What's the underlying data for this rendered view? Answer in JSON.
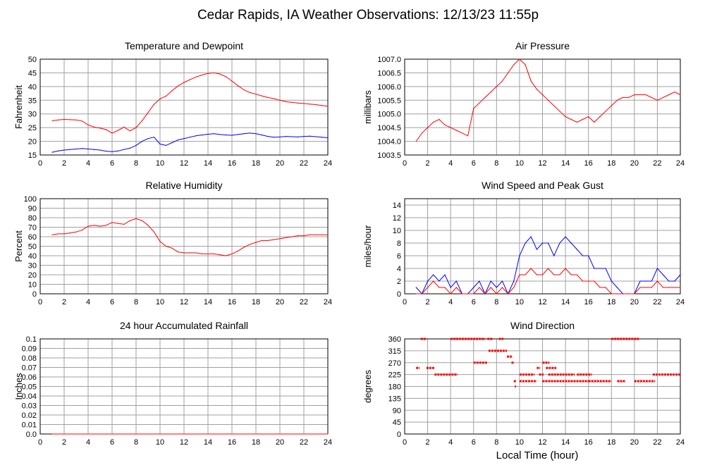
{
  "page": {
    "title": "Cedar Rapids, IA Weather Observations: 12/13/23 11:55p",
    "x_axis_label": "Local Time (hour)"
  },
  "colors": {
    "red": "#ff0000",
    "blue": "#0000ff",
    "grid": "#a0a0a0",
    "frame": "#000000"
  },
  "chart_data": [
    {
      "id": "temp",
      "type": "line",
      "title": "Temperature and Dewpoint",
      "ylabel": "Fahrenheit",
      "xlim": [
        0,
        24
      ],
      "ylim": [
        15,
        50
      ],
      "xticks": [
        2,
        4,
        6,
        8,
        10,
        12,
        14,
        16,
        18,
        20,
        22,
        24
      ],
      "yticks": [
        15,
        20,
        25,
        30,
        35,
        40,
        45,
        50
      ],
      "ytick_labels": [
        "15",
        "20",
        "25",
        "30",
        "35",
        "40",
        "45",
        "50"
      ],
      "grid": true,
      "series": [
        {
          "color": "#ff0000",
          "x": [
            1,
            1.5,
            2,
            2.5,
            3,
            3.5,
            4,
            4.5,
            5,
            5.5,
            6,
            6.5,
            7,
            7.5,
            8,
            8.5,
            9,
            9.5,
            10,
            10.5,
            11,
            11.5,
            12,
            12.5,
            13,
            13.5,
            14,
            14.5,
            15,
            15.5,
            16,
            16.5,
            17,
            17.5,
            18,
            18.5,
            19,
            19.5,
            20,
            20.5,
            21,
            21.5,
            22,
            22.5,
            23,
            23.5,
            24
          ],
          "y": [
            27.5,
            27.8,
            28,
            27.9,
            27.8,
            27.4,
            26,
            25.2,
            24.8,
            24.3,
            23,
            24,
            25.2,
            23.8,
            25,
            27.5,
            30.5,
            33.5,
            35.5,
            36.5,
            38.5,
            40.2,
            41.5,
            42.5,
            43.5,
            44.2,
            44.8,
            45,
            44.6,
            43.6,
            42,
            40.3,
            38.8,
            37.8,
            37.2,
            36.6,
            36,
            35.6,
            35,
            34.5,
            34.2,
            34,
            33.8,
            33.6,
            33.4,
            33.1,
            32.8
          ]
        },
        {
          "color": "#0000ff",
          "x": [
            1,
            1.5,
            2,
            2.5,
            3,
            3.5,
            4,
            4.5,
            5,
            5.5,
            6,
            6.5,
            7,
            7.5,
            8,
            8.5,
            9,
            9.5,
            10,
            10.5,
            11,
            11.5,
            12,
            12.5,
            13,
            13.5,
            14,
            14.5,
            15,
            15.5,
            16,
            16.5,
            17,
            17.5,
            18,
            18.5,
            19,
            19.5,
            20,
            20.5,
            21,
            21.5,
            22,
            22.5,
            23,
            23.5,
            24
          ],
          "y": [
            16,
            16.5,
            16.8,
            17,
            17.2,
            17.4,
            17.2,
            17,
            16.8,
            16.4,
            16.2,
            16.5,
            17,
            17.5,
            18.5,
            20,
            21,
            21.5,
            19,
            18.5,
            19.5,
            20.5,
            21,
            21.5,
            22,
            22.3,
            22.6,
            22.8,
            22.5,
            22.3,
            22.2,
            22.5,
            22.8,
            23,
            22.8,
            22.3,
            21.8,
            21.5,
            21.6,
            21.8,
            21.7,
            21.6,
            21.8,
            21.9,
            21.7,
            21.5,
            21.3
          ]
        }
      ]
    },
    {
      "id": "pressure",
      "type": "line",
      "title": "Air Pressure",
      "ylabel": "millibars",
      "xlim": [
        0,
        24
      ],
      "ylim": [
        1003.5,
        1007.0
      ],
      "xticks": [
        2,
        4,
        6,
        8,
        10,
        12,
        14,
        16,
        18,
        20,
        22,
        24
      ],
      "yticks": [
        1003.5,
        1004,
        1004.5,
        1005,
        1005.5,
        1006,
        1006.5,
        1007
      ],
      "ytick_labels": [
        "1003.5",
        "1004.0",
        "1004.5",
        "1005.0",
        "1005.5",
        "1006.0",
        "1006.5",
        "1007.0"
      ],
      "grid": true,
      "series": [
        {
          "color": "#ff0000",
          "x": [
            1,
            1.5,
            2,
            2.5,
            3,
            3.5,
            4,
            4.5,
            5,
            5.5,
            6,
            6.5,
            7,
            7.5,
            8,
            8.5,
            9,
            9.5,
            10,
            10.5,
            11,
            11.5,
            12,
            12.5,
            13,
            13.5,
            14,
            14.5,
            15,
            15.5,
            16,
            16.5,
            17,
            17.5,
            18,
            18.5,
            19,
            19.5,
            20,
            20.5,
            21,
            21.5,
            22,
            22.5,
            23,
            23.5,
            24
          ],
          "y": [
            1004,
            1004.3,
            1004.5,
            1004.7,
            1004.8,
            1004.6,
            1004.5,
            1004.4,
            1004.3,
            1004.2,
            1005.2,
            1005.4,
            1005.6,
            1005.8,
            1006.0,
            1006.2,
            1006.5,
            1006.8,
            1007.0,
            1006.8,
            1006.2,
            1005.9,
            1005.7,
            1005.5,
            1005.3,
            1005.1,
            1004.9,
            1004.8,
            1004.7,
            1004.8,
            1004.9,
            1004.7,
            1004.9,
            1005.1,
            1005.3,
            1005.5,
            1005.6,
            1005.6,
            1005.7,
            1005.7,
            1005.7,
            1005.6,
            1005.5,
            1005.6,
            1005.7,
            1005.8,
            1005.7
          ]
        }
      ]
    },
    {
      "id": "humidity",
      "type": "line",
      "title": "Relative Humidity",
      "ylabel": "Percent",
      "xlim": [
        0,
        24
      ],
      "ylim": [
        0,
        100
      ],
      "xticks": [
        2,
        4,
        6,
        8,
        10,
        12,
        14,
        16,
        18,
        20,
        22,
        24
      ],
      "yticks": [
        0,
        10,
        20,
        30,
        40,
        50,
        60,
        70,
        80,
        90,
        100
      ],
      "ytick_labels": [
        "0",
        "10",
        "20",
        "30",
        "40",
        "50",
        "60",
        "70",
        "80",
        "90",
        "100"
      ],
      "grid": true,
      "series": [
        {
          "color": "#ff0000",
          "x": [
            1,
            1.5,
            2,
            2.5,
            3,
            3.5,
            4,
            4.5,
            5,
            5.5,
            6,
            6.5,
            7,
            7.5,
            8,
            8.5,
            9,
            9.5,
            10,
            10.5,
            11,
            11.5,
            12,
            12.5,
            13,
            13.5,
            14,
            14.5,
            15,
            15.5,
            16,
            16.5,
            17,
            17.5,
            18,
            18.5,
            19,
            19.5,
            20,
            20.5,
            21,
            21.5,
            22,
            22.5,
            23,
            23.5,
            24
          ],
          "y": [
            62,
            63,
            63,
            64,
            65,
            67,
            71,
            72,
            71,
            72,
            75,
            74,
            73,
            77,
            79,
            77,
            72,
            65,
            55,
            50,
            48,
            44,
            43,
            43,
            43,
            42,
            42,
            42,
            41,
            40,
            42,
            45,
            49,
            52,
            54,
            56,
            56,
            57,
            58,
            59,
            60,
            61,
            61,
            62,
            62,
            62,
            62
          ]
        }
      ]
    },
    {
      "id": "wind",
      "type": "line",
      "title": "Wind Speed and Peak Gust",
      "ylabel": "miles/hour",
      "xlim": [
        0,
        24
      ],
      "ylim": [
        0,
        15
      ],
      "xticks": [
        2,
        4,
        6,
        8,
        10,
        12,
        14,
        16,
        18,
        20,
        22,
        24
      ],
      "yticks": [
        0,
        2,
        4,
        6,
        8,
        10,
        12,
        14
      ],
      "ytick_labels": [
        "0",
        "2",
        "4",
        "6",
        "8",
        "10",
        "12",
        "14"
      ],
      "grid": true,
      "series": [
        {
          "color": "#0000ff",
          "x": [
            1,
            1.5,
            2,
            2.5,
            3,
            3.5,
            4,
            4.5,
            5,
            5.5,
            6,
            6.5,
            7,
            7.5,
            8,
            8.5,
            9,
            9.5,
            10,
            10.5,
            11,
            11.5,
            12,
            12.5,
            13,
            13.5,
            14,
            14.5,
            15,
            15.5,
            16,
            16.5,
            17,
            17.5,
            18,
            18.5,
            19,
            19.5,
            20,
            20.5,
            21,
            21.5,
            22,
            22.5,
            23,
            23.5,
            24
          ],
          "y": [
            1,
            0,
            2,
            3,
            2,
            3,
            1,
            2,
            0,
            0,
            1,
            2,
            0,
            2,
            1,
            2,
            0,
            2,
            6,
            8,
            9,
            7,
            8,
            8,
            6,
            8,
            9,
            8,
            7,
            6,
            6,
            4,
            4,
            4,
            2,
            1,
            0,
            0,
            0,
            2,
            2,
            2,
            4,
            3,
            2,
            2,
            3
          ]
        },
        {
          "color": "#ff0000",
          "x": [
            1,
            1.5,
            2,
            2.5,
            3,
            3.5,
            4,
            4.5,
            5,
            5.5,
            6,
            6.5,
            7,
            7.5,
            8,
            8.5,
            9,
            9.5,
            10,
            10.5,
            11,
            11.5,
            12,
            12.5,
            13,
            13.5,
            14,
            14.5,
            15,
            15.5,
            16,
            16.5,
            17,
            17.5,
            18,
            18.5,
            19,
            19.5,
            20,
            20.5,
            21,
            21.5,
            22,
            22.5,
            23,
            23.5,
            24
          ],
          "y": [
            0,
            0,
            1,
            2,
            1,
            1,
            0,
            1,
            0,
            0,
            0,
            1,
            0,
            1,
            0,
            1,
            0,
            1,
            3,
            3,
            4,
            3,
            3,
            4,
            3,
            3,
            4,
            3,
            3,
            2,
            2,
            2,
            1,
            1,
            0,
            0,
            0,
            0,
            0,
            1,
            1,
            1,
            2,
            1,
            1,
            1,
            1
          ]
        }
      ]
    },
    {
      "id": "rain",
      "type": "line",
      "title": "24 hour Accumulated Rainfall",
      "ylabel": "Inches",
      "xlim": [
        0,
        24
      ],
      "ylim": [
        0,
        0.1
      ],
      "xticks": [
        2,
        4,
        6,
        8,
        10,
        12,
        14,
        16,
        18,
        20,
        22,
        24
      ],
      "yticks": [
        0,
        0.01,
        0.02,
        0.03,
        0.04,
        0.05,
        0.06,
        0.07,
        0.08,
        0.09,
        0.1
      ],
      "ytick_labels": [
        "0.0",
        "0.01",
        "0.02",
        "0.03",
        "0.04",
        "0.05",
        "0.06",
        "0.07",
        "0.08",
        "0.09",
        "0.1"
      ],
      "grid": true,
      "series": [
        {
          "color": "#ff0000",
          "x": [
            1,
            24
          ],
          "y": [
            0,
            0
          ]
        }
      ]
    },
    {
      "id": "winddir",
      "type": "scatter",
      "title": "Wind Direction",
      "ylabel": "degrees",
      "xlabel": "Local Time (hour)",
      "xlim": [
        0,
        24
      ],
      "ylim": [
        0,
        360
      ],
      "xticks": [
        2,
        4,
        6,
        8,
        10,
        12,
        14,
        16,
        18,
        20,
        22,
        24
      ],
      "yticks": [
        0,
        45,
        90,
        135,
        180,
        225,
        270,
        315,
        360
      ],
      "ytick_labels": [
        "0",
        "45",
        "90",
        "135",
        "180",
        "225",
        "270",
        "315",
        "360"
      ],
      "grid": true,
      "segments": [
        {
          "x0": 1.0,
          "x1": 1.3,
          "y": 250
        },
        {
          "x0": 1.4,
          "x1": 1.9,
          "y": 360
        },
        {
          "x0": 1.9,
          "x1": 2.6,
          "y": 250
        },
        {
          "x0": 2.6,
          "x1": 4.6,
          "y": 225
        },
        {
          "x0": 4.0,
          "x1": 7.0,
          "y": 360
        },
        {
          "x0": 6.0,
          "x1": 7.2,
          "y": 270
        },
        {
          "x0": 7.2,
          "x1": 7.7,
          "y": 360
        },
        {
          "x0": 7.3,
          "x1": 8.9,
          "y": 315
        },
        {
          "x0": 8.2,
          "x1": 8.6,
          "y": 360
        },
        {
          "x0": 8.9,
          "x1": 9.4,
          "y": 293
        },
        {
          "x0": 9.3,
          "x1": 9.5,
          "y": 270
        },
        {
          "x0": 9.5,
          "x1": 9.7,
          "y": 200
        },
        {
          "x0": 9.6,
          "x1": 9.7,
          "y": 180
        },
        {
          "x0": 10.0,
          "x1": 11.3,
          "y": 225
        },
        {
          "x0": 10.0,
          "x1": 11.5,
          "y": 200
        },
        {
          "x0": 11.5,
          "x1": 11.8,
          "y": 250
        },
        {
          "x0": 11.7,
          "x1": 12.1,
          "y": 225
        },
        {
          "x0": 12.0,
          "x1": 12.6,
          "y": 270
        },
        {
          "x0": 12.3,
          "x1": 13.2,
          "y": 250
        },
        {
          "x0": 12.5,
          "x1": 14.8,
          "y": 225
        },
        {
          "x0": 12.0,
          "x1": 16.0,
          "y": 200
        },
        {
          "x0": 15.0,
          "x1": 16.3,
          "y": 225
        },
        {
          "x0": 16.0,
          "x1": 18.0,
          "y": 200
        },
        {
          "x0": 18.0,
          "x1": 20.4,
          "y": 360
        },
        {
          "x0": 18.5,
          "x1": 19.2,
          "y": 200
        },
        {
          "x0": 20.0,
          "x1": 21.8,
          "y": 200
        },
        {
          "x0": 21.6,
          "x1": 24.0,
          "y": 225
        }
      ]
    }
  ]
}
